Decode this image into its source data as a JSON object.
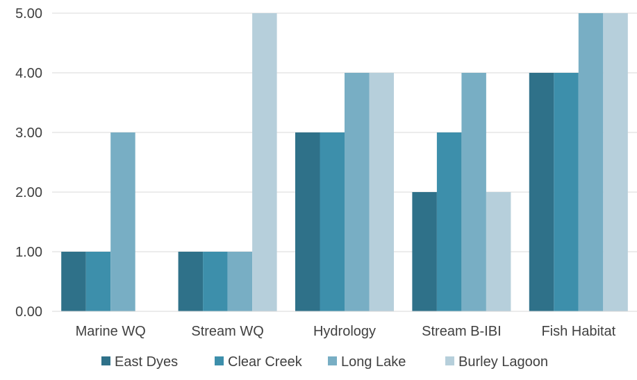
{
  "chart_data": {
    "type": "bar",
    "categories": [
      "Marine WQ",
      "Stream WQ",
      "Hydrology",
      "Stream B-IBI",
      "Fish Habitat"
    ],
    "series": [
      {
        "name": "East Dyes",
        "values": [
          1,
          1,
          3,
          2,
          4
        ],
        "color": "#2f7189"
      },
      {
        "name": "Clear Creek",
        "values": [
          1,
          1,
          3,
          3,
          4
        ],
        "color": "#3d8fab"
      },
      {
        "name": "Long Lake",
        "values": [
          3,
          1,
          4,
          4,
          5
        ],
        "color": "#78aec4"
      },
      {
        "name": "Burley Lagoon",
        "values": [
          0,
          5,
          4,
          2,
          5
        ],
        "color": "#b6cfdb"
      }
    ],
    "ylim": [
      0,
      5
    ],
    "yticks": [
      "0.00",
      "1.00",
      "2.00",
      "3.00",
      "4.00",
      "5.00"
    ],
    "grid": true,
    "legend_position": "bottom"
  }
}
